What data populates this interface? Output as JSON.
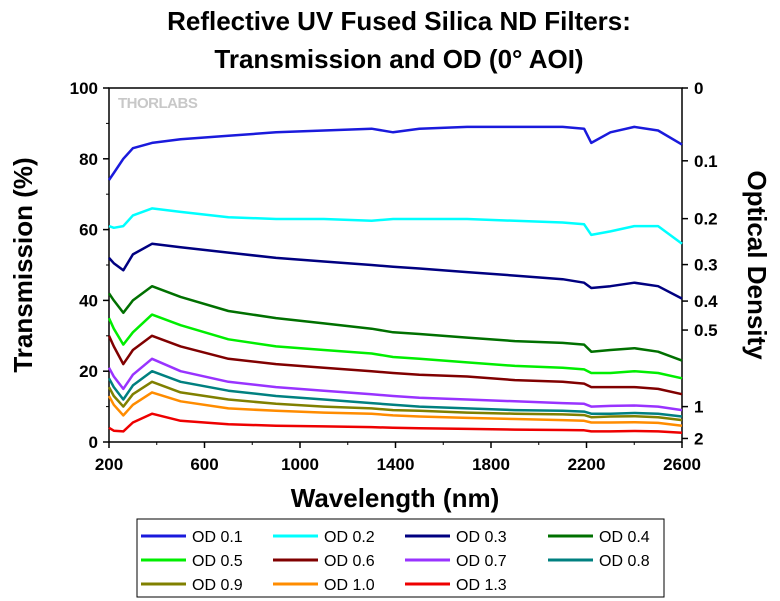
{
  "chart_data": {
    "type": "line",
    "title_line1": "Reflective UV Fused Silica ND Filters:",
    "title_line2": "Transmission and OD (0° AOI)",
    "xlabel": "Wavelength (nm)",
    "ylabel": "Transmission (%)",
    "y2label": "Optical Density",
    "xlim": [
      200,
      2600
    ],
    "ylim": [
      0,
      100
    ],
    "xticks": [
      200,
      600,
      1000,
      1400,
      1800,
      2200,
      2600
    ],
    "yticks": [
      0,
      20,
      40,
      60,
      80,
      100
    ],
    "y2ticks": [
      "0",
      "0.1",
      "0.2",
      "0.3",
      "0.4",
      "0.5",
      "1",
      "2"
    ],
    "grid": false,
    "logo": "THORLABS",
    "legend_position": "bottom",
    "x": [
      200,
      220,
      260,
      300,
      380,
      500,
      700,
      900,
      1100,
      1300,
      1390,
      1500,
      1700,
      1900,
      2100,
      2190,
      2220,
      2300,
      2400,
      2500,
      2600
    ],
    "series": [
      {
        "name": "OD 0.1",
        "color": "#1a1adc",
        "values": [
          74,
          76,
          80,
          83,
          84.5,
          85.5,
          86.5,
          87.5,
          88,
          88.5,
          87.5,
          88.5,
          89,
          89,
          89,
          88.5,
          84.5,
          87.5,
          89,
          88,
          84
        ]
      },
      {
        "name": "OD 0.2",
        "color": "#00ffff",
        "values": [
          61,
          60.5,
          61,
          64,
          66,
          65,
          63.5,
          63,
          63,
          62.5,
          63,
          63,
          63,
          62.5,
          62,
          61.5,
          58.5,
          59.5,
          61,
          61,
          56
        ]
      },
      {
        "name": "OD 0.3",
        "color": "#000080",
        "values": [
          52,
          50.5,
          48.5,
          53,
          56,
          55,
          53.5,
          52,
          51,
          50,
          49.5,
          49,
          48,
          47,
          46,
          45,
          43.5,
          44,
          45,
          44,
          40.5
        ]
      },
      {
        "name": "OD 0.4",
        "color": "#007000",
        "values": [
          42,
          40,
          36.5,
          40,
          44,
          41,
          37,
          35,
          33.5,
          32,
          31,
          30.5,
          29.5,
          28.5,
          28,
          27.5,
          25.5,
          26,
          26.5,
          25.5,
          23
        ]
      },
      {
        "name": "OD 0.5",
        "color": "#00ee00",
        "values": [
          35,
          32,
          27.5,
          31,
          36,
          33,
          29,
          27,
          26,
          25,
          24,
          23.5,
          22.5,
          21.5,
          21,
          20.5,
          19.5,
          19.5,
          20,
          19.5,
          18
        ]
      },
      {
        "name": "OD 0.6",
        "color": "#800000",
        "values": [
          30,
          27,
          22,
          26,
          30,
          27,
          23.5,
          22,
          21,
          20,
          19.5,
          19,
          18.5,
          17.5,
          17,
          16.5,
          15.5,
          15.5,
          15.5,
          15,
          13.5
        ]
      },
      {
        "name": "OD 0.7",
        "color": "#9933ff",
        "values": [
          21,
          18.5,
          15,
          19,
          23.5,
          20,
          17,
          15.5,
          14.5,
          13.5,
          13,
          12.5,
          12,
          11.5,
          11,
          10.8,
          10,
          10.2,
          10.3,
          10,
          9
        ]
      },
      {
        "name": "OD 0.8",
        "color": "#008080",
        "values": [
          18,
          15.5,
          12,
          16,
          20,
          17,
          14.5,
          13,
          12,
          11,
          10.5,
          10,
          9.5,
          9,
          8.8,
          8.6,
          8,
          8,
          8.2,
          8,
          7.2
        ]
      },
      {
        "name": "OD 0.9",
        "color": "#808000",
        "values": [
          15.5,
          13,
          10,
          13.5,
          17,
          14,
          12,
          10.8,
          10,
          9.5,
          9,
          8.8,
          8.3,
          8,
          7.8,
          7.6,
          7,
          7.2,
          7.3,
          7,
          6.2
        ]
      },
      {
        "name": "OD 1.0",
        "color": "#ff8c00",
        "values": [
          13,
          10.5,
          7.5,
          10.5,
          14,
          11.5,
          9.5,
          8.8,
          8.3,
          8,
          7.5,
          7.2,
          6.8,
          6.5,
          6.2,
          6,
          5.5,
          5.5,
          5.6,
          5.4,
          4.6
        ]
      },
      {
        "name": "OD 1.3",
        "color": "#ee0000",
        "values": [
          4,
          3.2,
          3,
          5.5,
          8,
          6,
          5,
          4.6,
          4.4,
          4.2,
          4,
          3.9,
          3.7,
          3.5,
          3.4,
          3.3,
          3,
          3,
          3.1,
          3,
          2.6
        ]
      }
    ]
  }
}
